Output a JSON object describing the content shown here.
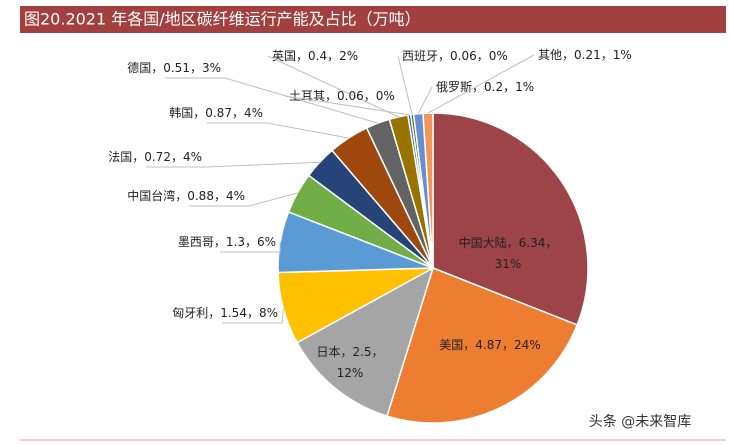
{
  "chart_data": {
    "type": "pie",
    "title": "图20.2021 年各国/地区碳纤维运行产能及占比（万吨）",
    "values": [
      6.34,
      4.87,
      2.5,
      1.54,
      1.3,
      0.88,
      0.72,
      0.87,
      0.51,
      0.4,
      0.06,
      0.06,
      0.2,
      0.21
    ],
    "value_labels": [
      "中国大陆，6.34，\n31%",
      "美国，4.87，24%",
      "日本，2.5，\n12%",
      "匈牙利，1.54，8%",
      "墨西哥，1.3，6%",
      "中国台湾，0.88，4%",
      "法国，0.72，4%",
      "韩国，0.87，4%",
      "德国，0.51，3%",
      "英国，0.4，2%",
      "土耳其，0.06，0%",
      "西班牙，0.06，0%",
      "俄罗斯，0.2，1%",
      "其他，0.21，1%"
    ],
    "colors": [
      "#9c4448",
      "#ed7d31",
      "#a5a5a5",
      "#ffc000",
      "#5b9bd5",
      "#70ad47",
      "#264478",
      "#9e480e",
      "#636363",
      "#997300",
      "#255e91",
      "#43682b",
      "#698ed0",
      "#f1975a"
    ]
  },
  "watermark": "头条 @未来智库"
}
